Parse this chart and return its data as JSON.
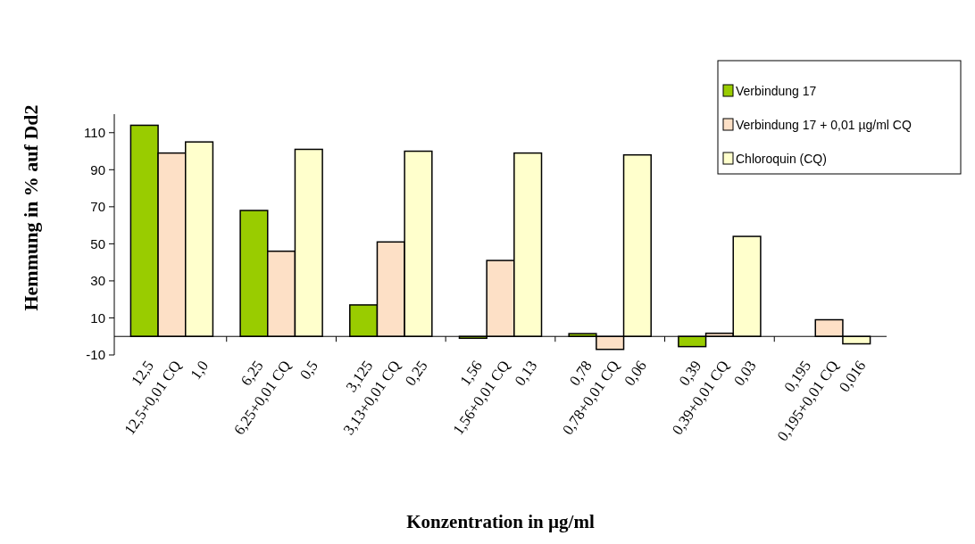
{
  "chart_data": {
    "type": "bar",
    "xlabel": "Konzentration in µg/ml",
    "ylabel": "Hemmung in % auf Dd2",
    "categories": [
      "12,5",
      "12,5+0,01 CQ",
      "1,0",
      null,
      "6,25",
      "6,25+0,01 CQ",
      "0,5",
      null,
      "3,125",
      "3,13+0,01 CQ",
      "0,25",
      null,
      "1,56",
      "1,56+0,01 CQ",
      "0,13",
      null,
      "0,78",
      "0,78+0,01 CQ",
      "0,06",
      null,
      "0,39",
      "0,39+0,01 CQ",
      "0,03",
      null,
      "0,195",
      "0,195+0,01 CQ",
      "0,016"
    ],
    "series": [
      {
        "name": "Verbindung 17",
        "color": "#99cc00",
        "values": [
          114,
          null,
          null,
          null,
          68,
          null,
          null,
          null,
          17,
          null,
          null,
          null,
          -1,
          null,
          null,
          null,
          1.5,
          null,
          null,
          null,
          -5.5,
          null,
          null,
          null,
          null,
          null,
          null
        ]
      },
      {
        "name": "Verbindung 17 + 0,01 µg/ml CQ",
        "color": "#fde0c6",
        "values": [
          null,
          99,
          null,
          null,
          null,
          46,
          null,
          null,
          null,
          51,
          null,
          null,
          null,
          41,
          null,
          null,
          null,
          -7,
          null,
          null,
          null,
          1.7,
          null,
          null,
          null,
          9,
          null
        ]
      },
      {
        "name": "Chloroquin (CQ)",
        "color": "#ffffcc",
        "values": [
          null,
          null,
          105,
          null,
          null,
          null,
          101,
          null,
          null,
          null,
          100,
          null,
          null,
          null,
          99,
          null,
          null,
          null,
          98,
          null,
          null,
          null,
          54,
          null,
          null,
          null,
          -4
        ]
      }
    ],
    "ylim": [
      -10,
      120
    ],
    "yticks": [
      -10,
      10,
      30,
      50,
      70,
      90,
      110
    ],
    "grid": false,
    "legend": "top right"
  }
}
